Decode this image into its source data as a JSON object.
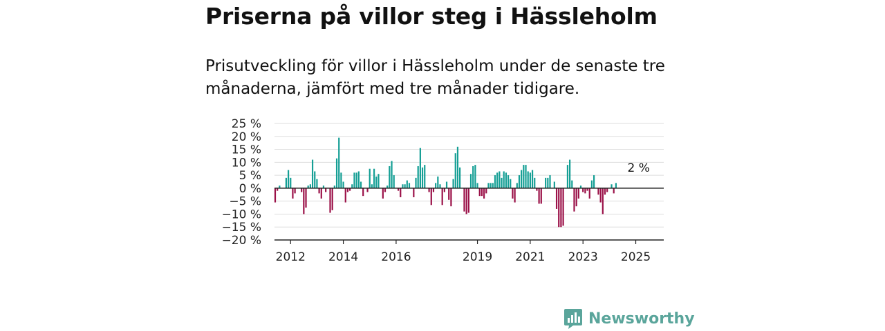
{
  "title": "Priserna på villor steg i Hässleholm",
  "subtitle": "Prisutveckling för villor i Hässleholm under de senaste tre månaderna, jämfört med tre månader tidigare.",
  "brand": "Newsworthy",
  "colors": {
    "positive": "#159f95",
    "negative": "#9b1148",
    "grid": "#dddddd",
    "zero": "#222222",
    "brand": "#5aa59b"
  },
  "chart_data": {
    "type": "bar",
    "title": "Priserna på villor steg i Hässleholm",
    "ylim": [
      -20,
      25
    ],
    "yticks": [
      25,
      20,
      15,
      10,
      5,
      0,
      -5,
      -10,
      -15,
      -20
    ],
    "ytick_labels": [
      "25 %",
      "20 %",
      "15 %",
      "10 %",
      "5 %",
      "0 %",
      "−5 %",
      "−10 %",
      "−15 %",
      "−20 %"
    ],
    "xtick_labels": [
      {
        "label": "2012",
        "index": 7
      },
      {
        "label": "2014",
        "index": 31
      },
      {
        "label": "2016",
        "index": 55
      },
      {
        "label": "2019",
        "index": 92
      },
      {
        "label": "2021",
        "index": 116
      },
      {
        "label": "2023",
        "index": 140
      },
      {
        "label": "2025",
        "index": 164
      }
    ],
    "grid": true,
    "annotation": {
      "text": "2 %",
      "index": 165
    },
    "values": [
      -5.5,
      -1,
      1,
      0,
      0,
      4,
      7,
      4,
      -4,
      -2,
      0,
      0,
      -1.5,
      -10,
      -7.5,
      1,
      1.5,
      11,
      6.5,
      3.5,
      -2,
      -4,
      1,
      -1.5,
      0,
      -9.5,
      -8.5,
      1,
      11.5,
      19.5,
      6,
      2.5,
      -5.5,
      -1.5,
      -1,
      1.5,
      6,
      6,
      6.5,
      2.5,
      -3,
      0,
      -1.5,
      7.5,
      1.5,
      7.5,
      4.5,
      5.5,
      0,
      -4,
      -1.5,
      1,
      8.5,
      10.5,
      5,
      0,
      -1,
      -3.5,
      1.5,
      1.5,
      3,
      2,
      0,
      -3.5,
      4,
      8.5,
      15.5,
      8,
      9,
      0,
      -1.5,
      -6.5,
      -1.5,
      2,
      4.5,
      1.5,
      -6.5,
      -1.5,
      2.5,
      -4.5,
      -7,
      3.5,
      13.5,
      16,
      8,
      0,
      -9,
      -10,
      -9.5,
      5.5,
      8.5,
      9,
      2,
      -3,
      -3,
      -4,
      -2,
      2,
      2,
      2,
      5,
      6,
      6.5,
      4,
      6.5,
      6,
      5,
      3.5,
      -4,
      -5.5,
      2,
      5,
      7,
      9,
      9,
      6.5,
      6,
      7,
      4,
      -1,
      -6,
      -6,
      0,
      4,
      4,
      5,
      0,
      2.5,
      -8,
      -15,
      -15,
      -14.5,
      0,
      9,
      11,
      3,
      -9,
      -7,
      -4,
      1,
      -1.5,
      -2,
      -1,
      -4,
      3,
      5,
      0,
      -2.5,
      -5.5,
      -10,
      -2.5,
      -1.5,
      0,
      1.5,
      -2,
      2
    ]
  }
}
